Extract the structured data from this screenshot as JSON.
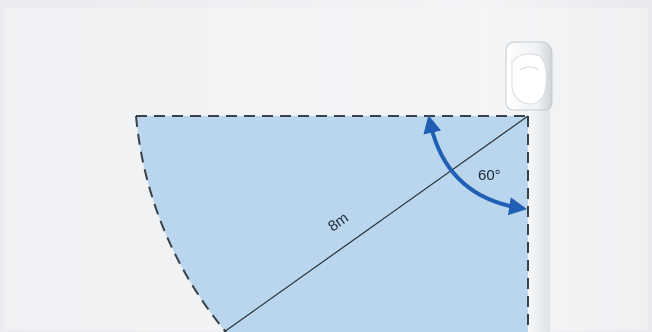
{
  "diagram": {
    "distance_label": "8m",
    "angle_label": "60°",
    "detection_angle_deg": 60,
    "detection_range_m": 8
  },
  "colors": {
    "wall": "#f2f4f6",
    "coverage_fill": "#b9d6ee",
    "dashed_outline": "#3a4148",
    "arrow": "#1f5fb4",
    "sensor_body": "#ffffff"
  },
  "icons": {
    "sensor": "motion-sensor-icon"
  }
}
